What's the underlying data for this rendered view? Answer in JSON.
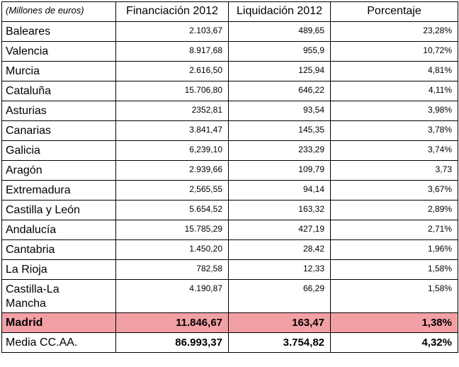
{
  "chart_data": {
    "type": "table",
    "unit_label": "(Millones de euros)",
    "columns": [
      "Financiación 2012",
      "Liquidación 2012",
      "Porcentaje"
    ],
    "rows": [
      {
        "region": "Baleares",
        "financiacion": "2.103,67",
        "liquidacion": "489,65",
        "porcentaje": "23,28%"
      },
      {
        "region": "Valencia",
        "financiacion": "8.917,68",
        "liquidacion": "955,9",
        "porcentaje": "10,72%"
      },
      {
        "region": "Murcia",
        "financiacion": "2.616,50",
        "liquidacion": "125,94",
        "porcentaje": "4,81%"
      },
      {
        "region": "Cataluña",
        "financiacion": "15.706,80",
        "liquidacion": "646,22",
        "porcentaje": "4,11%"
      },
      {
        "region": "Asturias",
        "financiacion": "2352,81",
        "liquidacion": "93,54",
        "porcentaje": "3,98%"
      },
      {
        "region": "Canarias",
        "financiacion": "3.841,47",
        "liquidacion": "145,35",
        "porcentaje": "3,78%"
      },
      {
        "region": "Galicia",
        "financiacion": "6,239,10",
        "liquidacion": "233,29",
        "porcentaje": "3,74%"
      },
      {
        "region": "Aragón",
        "financiacion": "2.939,66",
        "liquidacion": "109,79",
        "porcentaje": "3,73"
      },
      {
        "region": "Extremadura",
        "financiacion": "2,565,55",
        "liquidacion": "94,14",
        "porcentaje": "3,67%"
      },
      {
        "region": "Castilla y León",
        "financiacion": "5.654,52",
        "liquidacion": "163,32",
        "porcentaje": "2,89%"
      },
      {
        "region": "Andalucía",
        "financiacion": "15.785,29",
        "liquidacion": "427,19",
        "porcentaje": "2,71%"
      },
      {
        "region": "Cantabria",
        "financiacion": "1.450,20",
        "liquidacion": "28,42",
        "porcentaje": "1,96%"
      },
      {
        "region": "La Rioja",
        "financiacion": "782,58",
        "liquidacion": "12,33",
        "porcentaje": "1,58%"
      },
      {
        "region": "Castilla-La Mancha",
        "financiacion": "4.190,87",
        "liquidacion": "66,29",
        "porcentaje": "1,58%"
      },
      {
        "region": "Madrid",
        "financiacion": "11.846,67",
        "liquidacion": "163,47",
        "porcentaje": "1,38%"
      },
      {
        "region": "Media CC.AA.",
        "financiacion": "86.993,37",
        "liquidacion": "3.754,82",
        "porcentaje": "4,32%"
      }
    ],
    "highlighted_region": "Madrid",
    "colors": {
      "highlight": "#f3a0a5",
      "border": "#000000",
      "background": "#ffffff",
      "text": "#000000"
    }
  }
}
